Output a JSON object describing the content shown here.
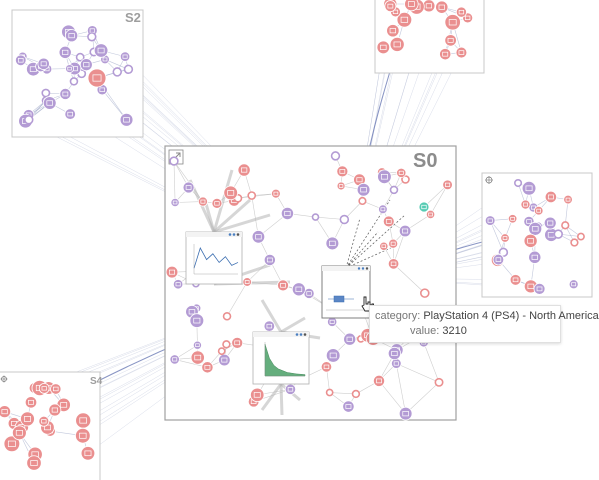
{
  "panels": {
    "s0_label": "S0",
    "s2_label": "S2",
    "s4_label": "S4"
  },
  "tooltip": {
    "category_key": "category:",
    "category_value": "PlayStation 4 (PS4) - North America",
    "value_key": "value:",
    "value_value": "3210"
  },
  "mini_charts": [
    {
      "id": "line",
      "type": "line",
      "values": [
        2,
        9,
        5,
        7,
        4,
        6,
        3,
        4
      ]
    },
    {
      "id": "boxplot",
      "type": "boxplot",
      "box": [
        0.2,
        0.45
      ],
      "whisker": [
        0.05,
        0.7
      ]
    },
    {
      "id": "area",
      "type": "area",
      "values": [
        9,
        5,
        3,
        2,
        1.5,
        1,
        0.8,
        0.6,
        0.5,
        0.4
      ]
    }
  ],
  "colors": {
    "node_red": "#ea8f8f",
    "node_purple": "#b39bd4",
    "node_teal": "#56cbb3",
    "edge": "#8f9bbf",
    "bundle_dark": "#6b7ab5",
    "panel_border": "#c8c8c8",
    "s0_border": "#a0a0a0"
  },
  "icons": {
    "focus": "crosshair-icon",
    "collapse": "collapse-arrow-icon",
    "cursor": "hand-pointer-icon"
  }
}
